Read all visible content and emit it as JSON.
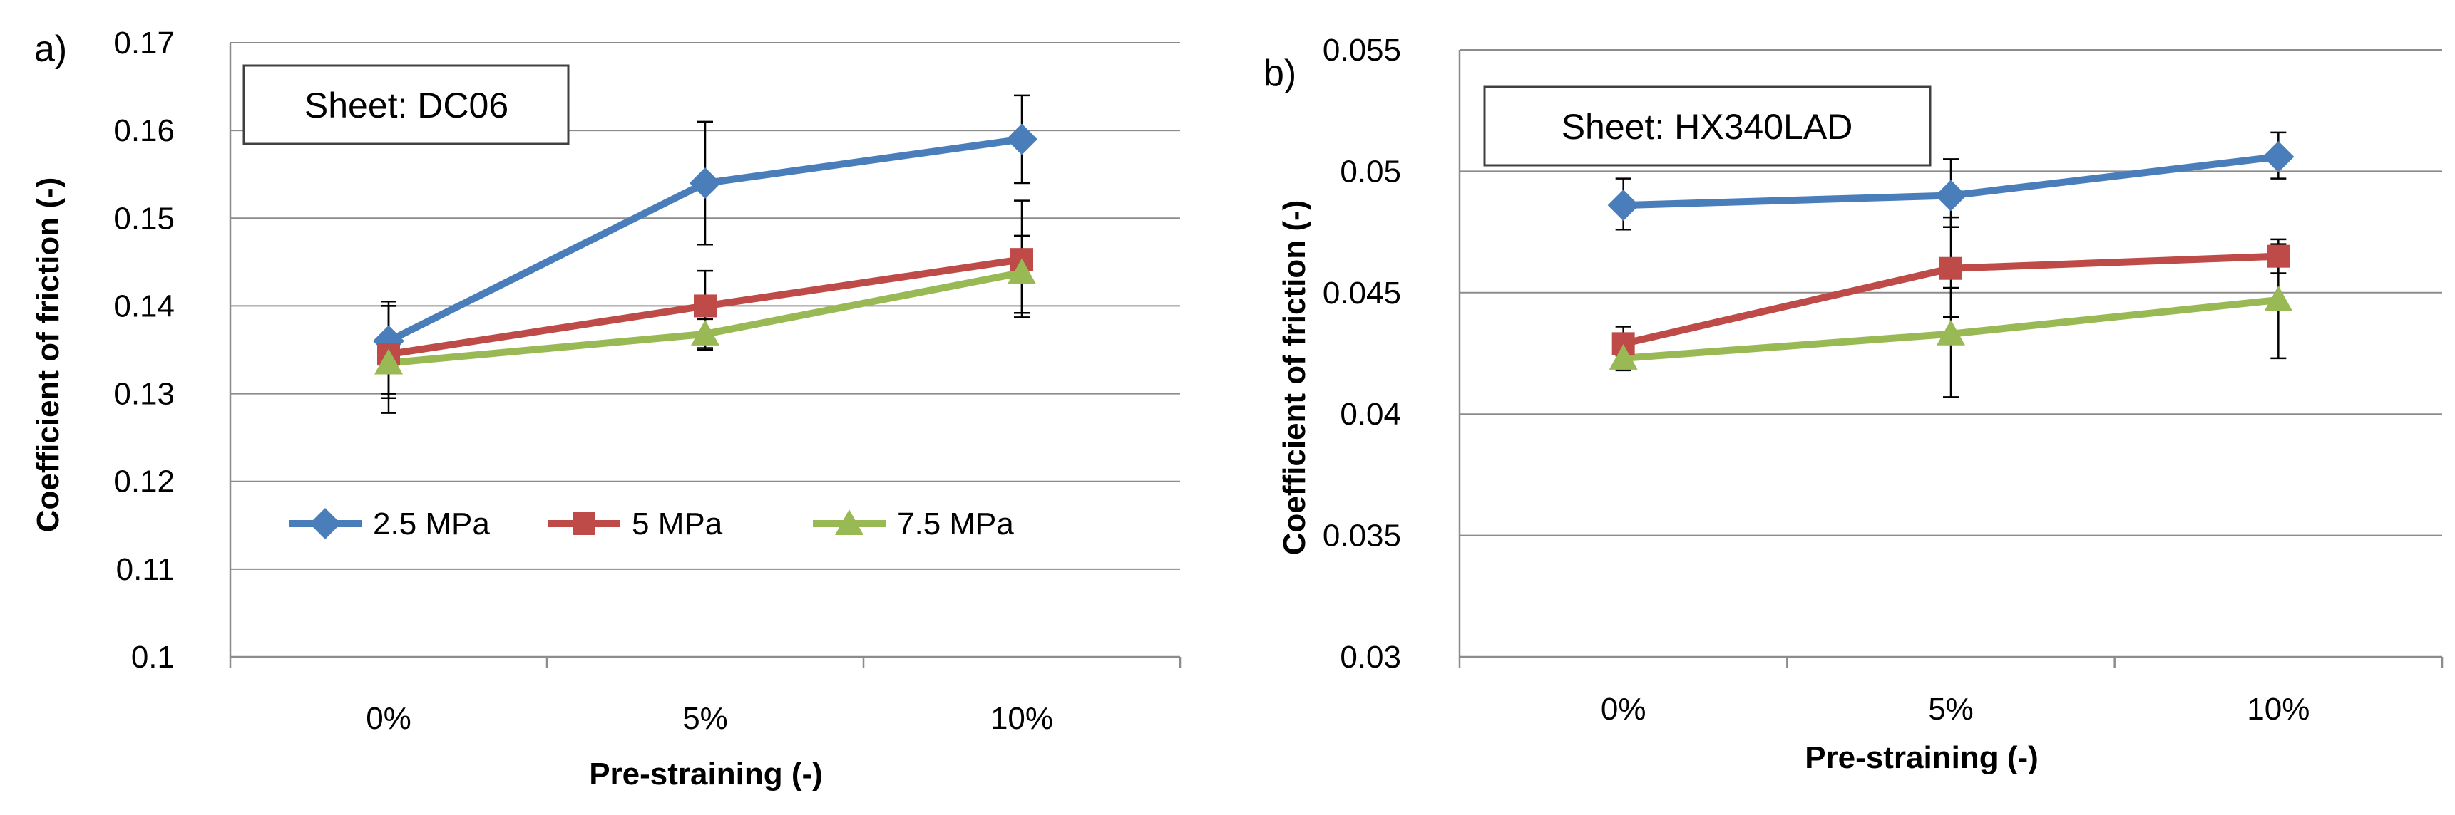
{
  "chart_data": [
    {
      "type": "line",
      "panel_label": "a)",
      "annotation": "Sheet: DC06",
      "categories": [
        "0%",
        "5%",
        "10%"
      ],
      "xlabel": "Pre-straining (-)",
      "ylabel": "Coefficient of friction (-)",
      "ylim": [
        0.1,
        0.17
      ],
      "yticks": [
        0.1,
        0.11,
        0.12,
        0.13,
        0.14,
        0.15,
        0.16,
        0.17
      ],
      "ytick_labels": [
        "0.1",
        "0.11",
        "0.12",
        "0.13",
        "0.14",
        "0.15",
        "0.16",
        "0.17"
      ],
      "grid": true,
      "legend_position": "bottom-center",
      "series": [
        {
          "name": "2.5 MPa",
          "color": "#4a7ebb",
          "marker": "diamond",
          "values": [
            0.136,
            0.154,
            0.159
          ],
          "err_low": [
            0.13,
            0.147,
            0.154
          ],
          "err_high": [
            0.14,
            0.161,
            0.164
          ]
        },
        {
          "name": "5 MPa",
          "color": "#be4b48",
          "marker": "square",
          "values": [
            0.1345,
            0.14,
            0.1453
          ],
          "err_low": [
            0.1295,
            0.135,
            0.1387
          ],
          "err_high": [
            0.1405,
            0.144,
            0.152
          ]
        },
        {
          "name": "7.5 MPa",
          "color": "#98b954",
          "marker": "triangle",
          "values": [
            0.1335,
            0.1368,
            0.1438
          ],
          "err_low": [
            0.1278,
            0.1352,
            0.1392
          ],
          "err_high": [
            0.14,
            0.1385,
            0.148
          ]
        }
      ]
    },
    {
      "type": "line",
      "panel_label": "b)",
      "annotation": "Sheet: HX340LAD",
      "categories": [
        "0%",
        "5%",
        "10%"
      ],
      "xlabel": "Pre-straining (-)",
      "ylabel": "Coefficient of friction (-)",
      "ylim": [
        0.03,
        0.055
      ],
      "yticks": [
        0.03,
        0.035,
        0.04,
        0.045,
        0.05,
        0.055
      ],
      "ytick_labels": [
        "0.03",
        "0.035",
        "0.04",
        "0.045",
        "0.05",
        "0.055"
      ],
      "grid": true,
      "legend_position": "none",
      "series": [
        {
          "name": "2.5 MPa",
          "color": "#4a7ebb",
          "marker": "diamond",
          "values": [
            0.0486,
            0.049,
            0.0506
          ],
          "err_low": [
            0.0476,
            0.0477,
            0.0497
          ],
          "err_high": [
            0.0497,
            0.0505,
            0.0516
          ]
        },
        {
          "name": "5 MPa",
          "color": "#be4b48",
          "marker": "square",
          "values": [
            0.0429,
            0.046,
            0.0465
          ],
          "err_low": [
            0.0424,
            0.044,
            0.0458
          ],
          "err_high": [
            0.0436,
            0.0481,
            0.0472
          ]
        },
        {
          "name": "7.5 MPa",
          "color": "#98b954",
          "marker": "triangle",
          "values": [
            0.0423,
            0.0433,
            0.0447
          ],
          "err_low": [
            0.0418,
            0.0407,
            0.0423
          ],
          "err_high": [
            0.0428,
            0.0452,
            0.047
          ]
        }
      ]
    }
  ]
}
